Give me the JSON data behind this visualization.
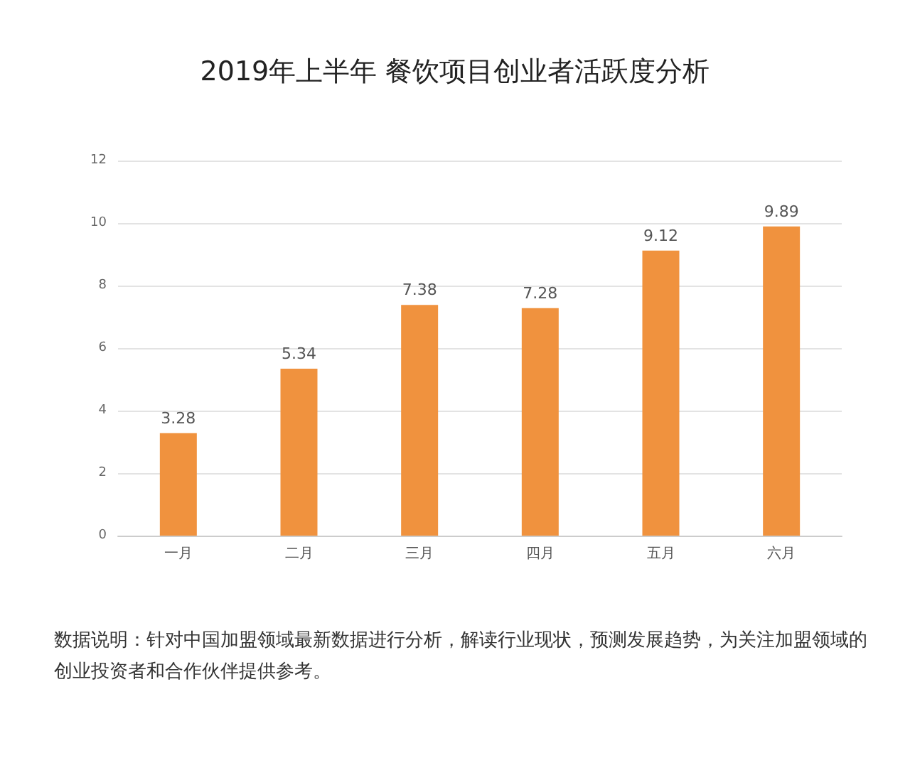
{
  "chart_data": {
    "type": "bar",
    "title": "2019年上半年 餐饮项目创业者活跃度分析",
    "categories": [
      "一月",
      "二月",
      "三月",
      "四月",
      "五月",
      "六月"
    ],
    "values": [
      3.28,
      5.34,
      7.38,
      7.28,
      9.12,
      9.89
    ],
    "color": "#f0923e",
    "ylim": [
      0,
      12
    ],
    "yticks": [
      0,
      2,
      4,
      6,
      8,
      10,
      12
    ],
    "grid": "y",
    "data_labels": true,
    "annotations": [
      "数据说明：针对中国加盟领域最新数据进行分析，解读行业现状，预测发展趋势，为关注加盟领域的创业投资者和合作伙伴提供参考。"
    ]
  }
}
